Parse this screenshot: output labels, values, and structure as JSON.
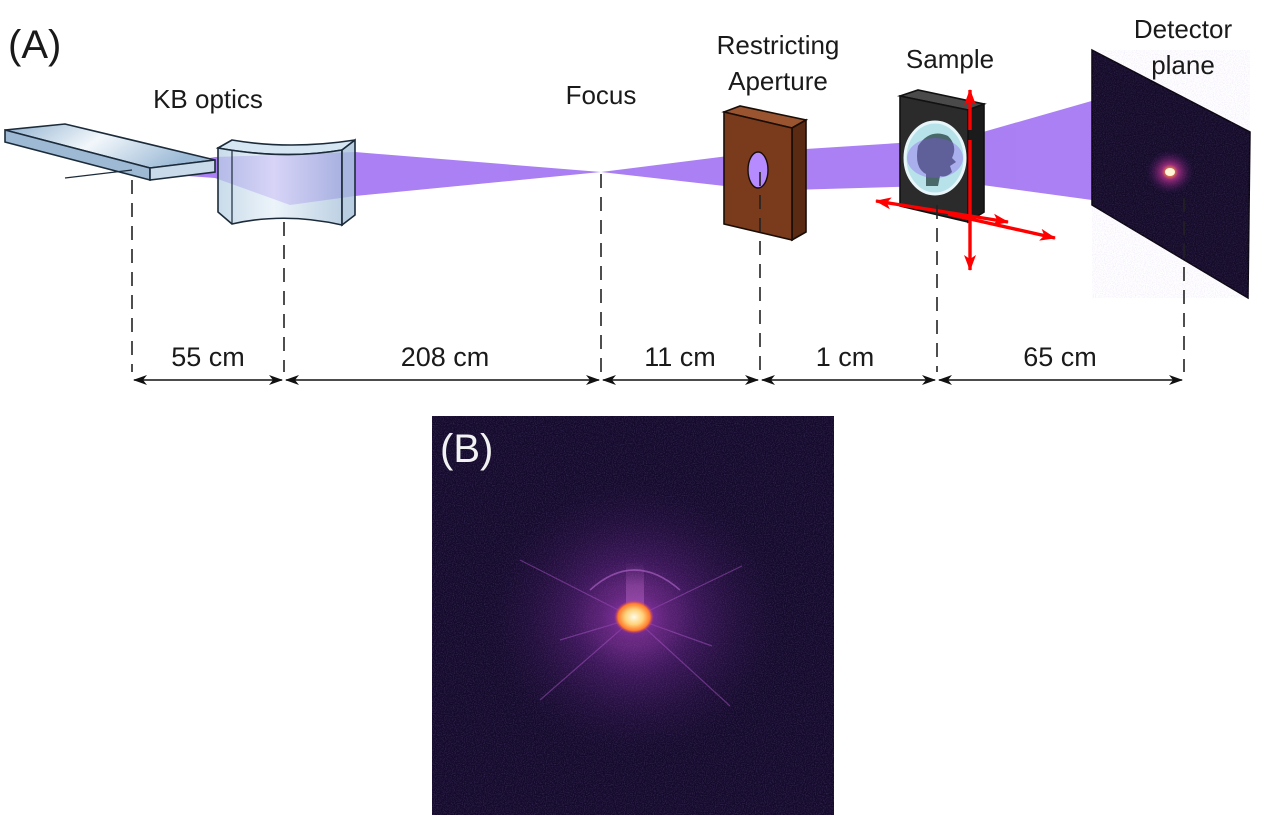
{
  "panels": {
    "a": {
      "label": "(A)"
    },
    "b": {
      "label": "(B)"
    }
  },
  "components": {
    "kb_optics": "KB optics",
    "focus": "Focus",
    "aperture_line1": "Restricting",
    "aperture_line2": "Aperture",
    "sample": "Sample",
    "detector_line1": "Detector",
    "detector_line2": "plane"
  },
  "distances": [
    {
      "label": "55 cm"
    },
    {
      "label": "208 cm"
    },
    {
      "label": "11 cm"
    },
    {
      "label": "1 cm"
    },
    {
      "label": "65 cm"
    }
  ],
  "colors": {
    "beam": "#8a4ff0",
    "mirror": "#a9c4dd",
    "aperture": "#7a3a1c",
    "sample_frame": "#2b2b2b",
    "sample_window": "#b8e2ea",
    "arrows": "#ff0000",
    "detector": "#140b28",
    "pattern_background": "#130a2a",
    "pattern_core": "#ffe6a8"
  },
  "icons": {
    "kb_mirror_1": "flat-mirror-icon",
    "kb_mirror_2": "curved-mirror-icon",
    "aperture": "aperture-plate-icon",
    "sample": "sample-holder-icon",
    "arrows": "translation-arrows-icon",
    "detector": "detector-panel-icon"
  }
}
